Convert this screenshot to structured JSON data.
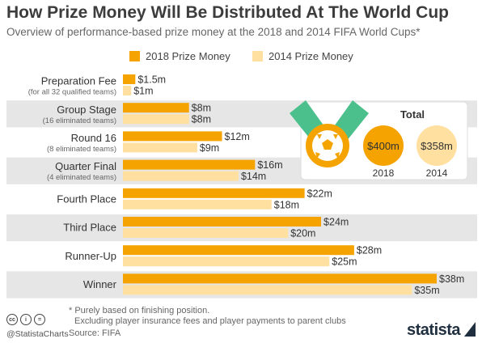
{
  "header": {
    "title": "How Prize Money Will Be Distributed At The World Cup",
    "subtitle": "Overview of performance-based prize money at the 2018 and 2014 FIFA World Cups*"
  },
  "colors": {
    "series2018": "#F5A300",
    "series2014": "#FFE0A0",
    "band": "#E6E6E6",
    "medal_ribbon": "#4CC08C",
    "medal_gold": "#F5A300"
  },
  "chart_data": {
    "type": "bar",
    "orientation": "horizontal",
    "categories": [
      "Preparation Fee",
      "Group Stage",
      "Round 16",
      "Quarter Final",
      "Fourth Place",
      "Third Place",
      "Runner-Up",
      "Winner"
    ],
    "category_sublabels": [
      "(for all 32 qualified teams)",
      "(16 eliminated teams)",
      "(8 eliminated teams)",
      "(4 eliminated teams)",
      "",
      "",
      "",
      ""
    ],
    "series": [
      {
        "name": "2018 Prize Money",
        "values": [
          1.5,
          8,
          12,
          16,
          22,
          24,
          28,
          38
        ],
        "labels": [
          "$1.5m",
          "$8m",
          "$12m",
          "$16m",
          "$22m",
          "$24m",
          "$28m",
          "$38m"
        ]
      },
      {
        "name": "2014 Prize Money",
        "values": [
          1,
          8,
          9,
          14,
          18,
          20,
          25,
          35
        ],
        "labels": [
          "$1m",
          "$8m",
          "$9m",
          "$14m",
          "$18m",
          "$20m",
          "$25m",
          "$35m"
        ]
      }
    ],
    "unit": "million US$",
    "xlim": [
      0,
      38
    ],
    "legend_position": "top"
  },
  "totals": {
    "heading": "Total",
    "items": [
      {
        "value": "$400m",
        "year": "2018"
      },
      {
        "value": "$358m",
        "year": "2014"
      }
    ]
  },
  "footer": {
    "note_line1": "* Purely based on finishing position.",
    "note_line2": "Excluding player insurance fees and player payments to parent clubs",
    "source": "Source: FIFA",
    "handle": "@StatistaCharts",
    "brand": "statista",
    "license_icons": [
      "cc",
      "i",
      "="
    ]
  }
}
